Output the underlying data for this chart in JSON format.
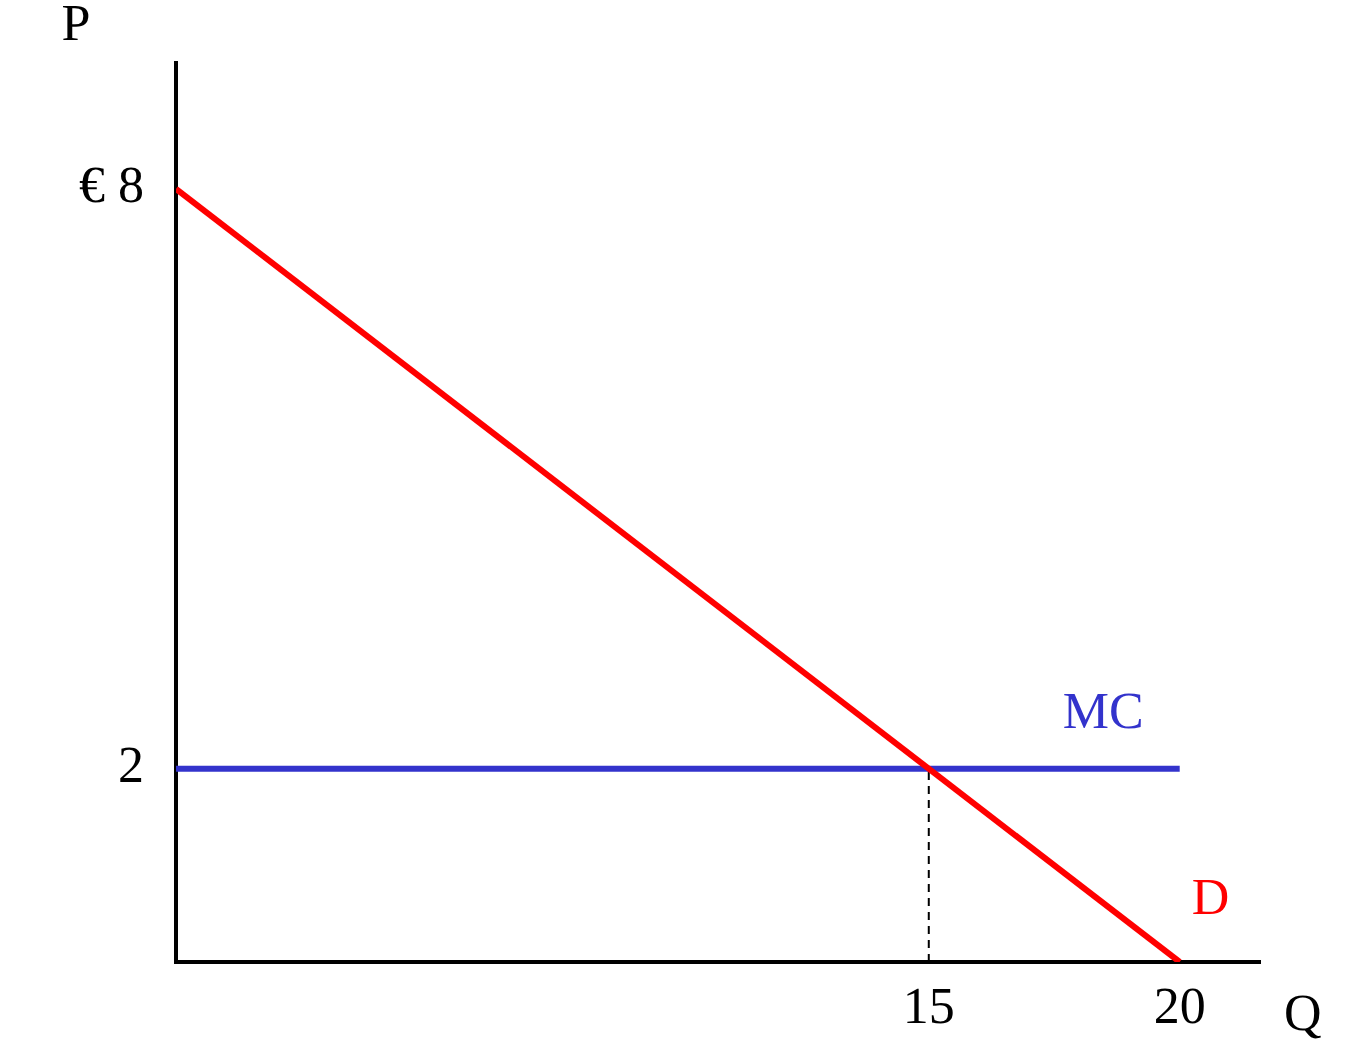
{
  "chart_data": {
    "type": "line",
    "xlabel": "Q",
    "ylabel": "P",
    "xlim": [
      0,
      21.6
    ],
    "ylim": [
      0,
      9.3
    ],
    "xticks": [
      15,
      20
    ],
    "yticks": [
      2,
      {
        "value": 8,
        "label": "€ 8"
      }
    ],
    "grid": false,
    "legend": false,
    "marker": "none",
    "series": [
      {
        "name": "D",
        "color": "#ff0000",
        "x": [
          0,
          20
        ],
        "values": [
          8,
          0
        ]
      },
      {
        "name": "MC",
        "color": "#3333cc",
        "x": [
          0,
          20
        ],
        "values": [
          2,
          2
        ]
      },
      {
        "color": "#000000",
        "x": [
          15,
          15
        ],
        "values": [
          0,
          2
        ],
        "line_style": "dashed"
      }
    ]
  }
}
